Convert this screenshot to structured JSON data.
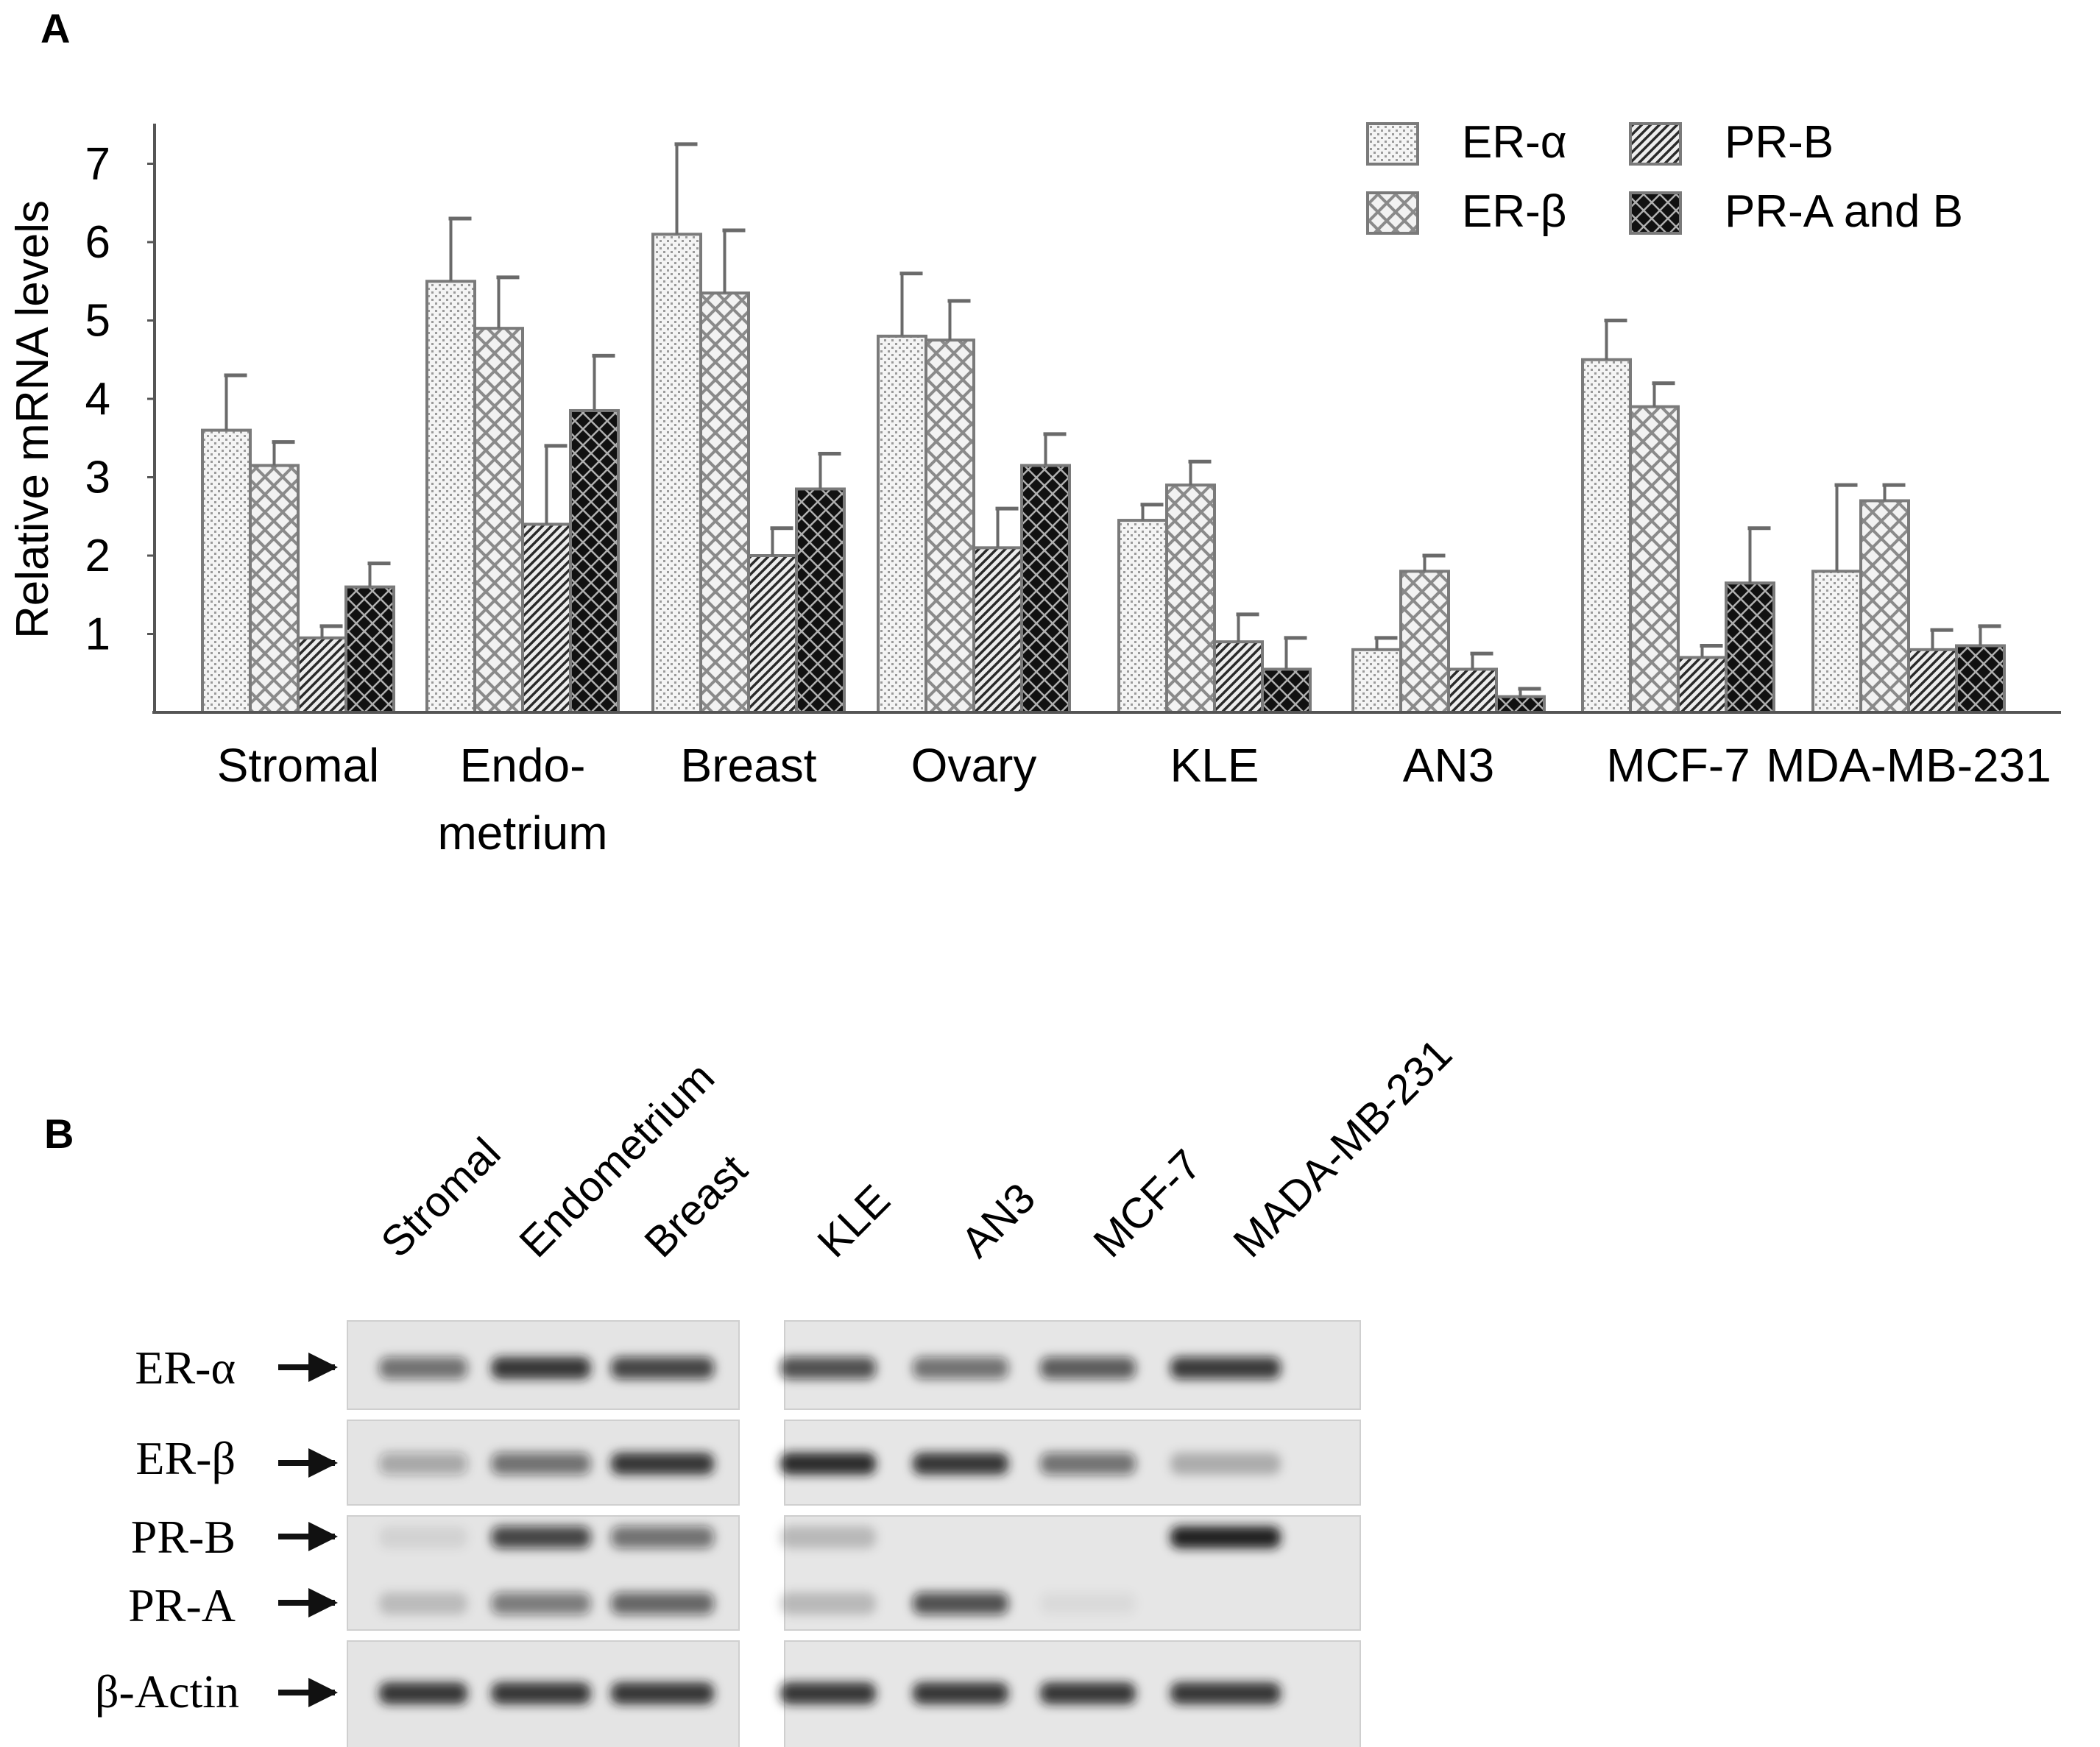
{
  "panel_a": {
    "letter": "A"
  },
  "panel_b": {
    "letter": "B"
  },
  "chart_data": {
    "type": "bar",
    "title": "",
    "xlabel": "",
    "ylabel": "Relative mRNA levels",
    "ylim": [
      0,
      7.5
    ],
    "yticks": [
      1,
      2,
      3,
      4,
      5,
      6,
      7
    ],
    "grid": false,
    "legend_position": "top-right",
    "categories": [
      [
        "Stromal"
      ],
      [
        "Endo-",
        "metrium"
      ],
      [
        "Breast"
      ],
      [
        "Ovary"
      ],
      [
        "KLE"
      ],
      [
        "AN3"
      ],
      [
        "MCF-7"
      ],
      [
        "MDA-MB-231"
      ]
    ],
    "series": [
      {
        "name": "ER-α",
        "pattern": "dots",
        "values": [
          3.6,
          5.5,
          6.1,
          4.8,
          2.45,
          0.8,
          4.5,
          1.8
        ],
        "errors": [
          0.7,
          0.8,
          1.15,
          0.8,
          0.2,
          0.15,
          0.5,
          1.1
        ]
      },
      {
        "name": "ER-β",
        "pattern": "crosshatch",
        "values": [
          3.15,
          4.9,
          5.35,
          4.75,
          2.9,
          1.8,
          3.9,
          2.7
        ],
        "errors": [
          0.3,
          0.65,
          0.8,
          0.5,
          0.3,
          0.2,
          0.3,
          0.2
        ]
      },
      {
        "name": "PR-B",
        "pattern": "diagonal",
        "values": [
          0.95,
          2.4,
          2.0,
          2.1,
          0.9,
          0.55,
          0.7,
          0.8
        ],
        "errors": [
          0.15,
          1.0,
          0.35,
          0.5,
          0.35,
          0.2,
          0.15,
          0.25
        ]
      },
      {
        "name": "PR-A and B",
        "pattern": "dark",
        "values": [
          1.6,
          3.85,
          2.85,
          3.15,
          0.55,
          0.2,
          1.65,
          0.85
        ],
        "errors": [
          0.3,
          0.7,
          0.45,
          0.4,
          0.4,
          0.1,
          0.7,
          0.25
        ]
      }
    ],
    "legend_rows": [
      [
        "ER-α",
        "PR-B"
      ],
      [
        "ER-β",
        "PR-A and B"
      ]
    ],
    "colors": {
      "bar_stroke": "#7a7a7a",
      "axis": "#555555",
      "dark_fill": "#1a1a1a"
    }
  },
  "blot": {
    "lanes_left": [
      "Stromal",
      "Endometrium",
      "Breast"
    ],
    "lanes_right": [
      "KLE",
      "AN3",
      "MCF-7",
      "MADA-MB-231"
    ],
    "rows": [
      {
        "label": "ER-α"
      },
      {
        "label": "ER-β"
      },
      {
        "label": "PR-B"
      },
      {
        "label": "PR-A"
      },
      {
        "label": "β-Actin"
      }
    ],
    "intensity": {
      "ER-α": [
        0.55,
        0.85,
        0.75,
        0.7,
        0.55,
        0.65,
        0.8
      ],
      "ER-β": [
        0.3,
        0.55,
        0.85,
        0.9,
        0.85,
        0.55,
        0.25
      ],
      "PR-B": [
        0.08,
        0.75,
        0.55,
        0.2,
        0.0,
        0.0,
        0.95
      ],
      "PR-A": [
        0.18,
        0.5,
        0.6,
        0.2,
        0.7,
        0.05,
        0.0
      ],
      "β-Actin": [
        0.85,
        0.85,
        0.85,
        0.85,
        0.85,
        0.85,
        0.85
      ]
    }
  }
}
